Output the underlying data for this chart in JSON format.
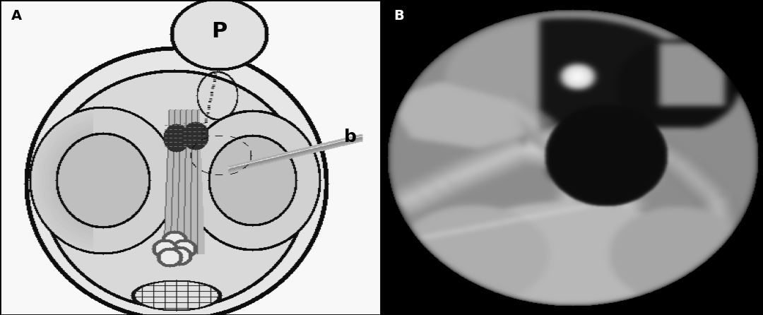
{
  "figure_width": 10.8,
  "figure_height": 4.46,
  "dpi": 100,
  "background_color": "#ffffff",
  "border_color": "#000000",
  "border_linewidth": 2.0,
  "panel_A_label": "A",
  "panel_B_label": "B",
  "label_fontsize": 14,
  "label_fontweight": "bold",
  "label_color_A": "#000000",
  "label_color_B": "#ffffff",
  "panel_A_bg": "#ffffff",
  "panel_B_bg": "#000000"
}
